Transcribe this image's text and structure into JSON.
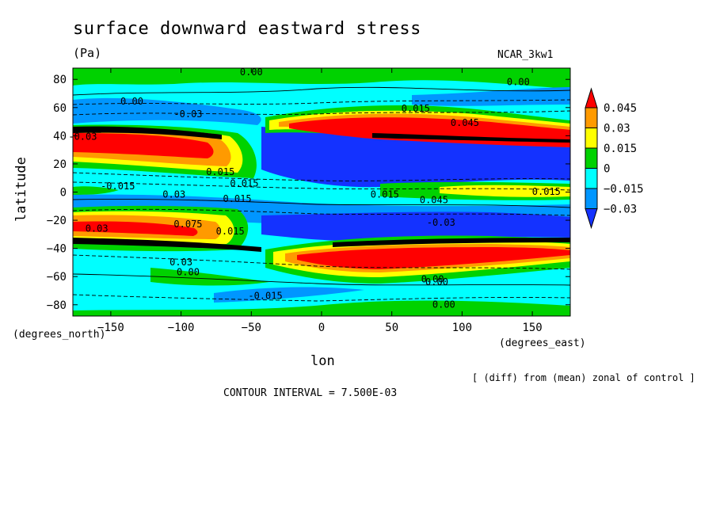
{
  "chart_data": {
    "type": "heatmap",
    "title": "surface downward eastward stress",
    "units_label": "(Pa)",
    "model_label": "NCAR_3kw1",
    "xlabel": "lon",
    "ylabel": "latitude",
    "x_units_label": "(degrees_east)",
    "y_units_label": "(degrees_north)",
    "note": "[ (diff) from (mean) zonal of control ]",
    "contour_interval_label": "CONTOUR INTERVAL = 7.500E-03",
    "xlim": [
      -177,
      177
    ],
    "ylim": [
      -88,
      88
    ],
    "x_ticks": [
      -150,
      -100,
      -50,
      0,
      50,
      100,
      150
    ],
    "x_tick_labels": [
      "−150",
      "−100",
      "−50",
      "0",
      "50",
      "100",
      "150"
    ],
    "y_ticks": [
      80,
      60,
      40,
      20,
      0,
      -20,
      -40,
      -60,
      -80
    ],
    "y_tick_labels": [
      "80",
      "60",
      "40",
      "20",
      "0",
      "−20",
      "−40",
      "−60",
      "−80"
    ],
    "colorbar": {
      "levels": [
        0.045,
        0.03,
        0.015,
        0,
        -0.015,
        -0.03
      ],
      "labels": [
        "0.045",
        "0.03",
        "0.015",
        "0",
        "−0.015",
        "−0.03"
      ],
      "colors": [
        "#ff0000",
        "#ff9a00",
        "#ffff00",
        "#00d200",
        "#00ffff",
        "#0096ff",
        "#1432ff"
      ]
    },
    "contour_labels": [
      {
        "text": "0.00",
        "lon": -50,
        "lat": 83
      },
      {
        "text": "0.00",
        "lon": 140,
        "lat": 76
      },
      {
        "text": "0.00",
        "lon": -135,
        "lat": 62
      },
      {
        "text": "-0.03",
        "lon": -95,
        "lat": 53
      },
      {
        "text": "0.015",
        "lon": 67,
        "lat": 57
      },
      {
        "text": "-0.03",
        "lon": -170,
        "lat": 37
      },
      {
        "text": "0.045",
        "lon": 102,
        "lat": 47
      },
      {
        "text": "0.015",
        "lon": -72,
        "lat": 12
      },
      {
        "text": "0.015",
        "lon": -55,
        "lat": 4
      },
      {
        "text": "-0.015",
        "lon": -145,
        "lat": 2
      },
      {
        "text": "0.03",
        "lon": -105,
        "lat": -4
      },
      {
        "text": "0.015",
        "lon": 160,
        "lat": -2
      },
      {
        "text": "0.015",
        "lon": 45,
        "lat": -4
      },
      {
        "text": "0.045",
        "lon": 80,
        "lat": -8
      },
      {
        "text": "0.015",
        "lon": -60,
        "lat": -7
      },
      {
        "text": "-0.03",
        "lon": 85,
        "lat": -24
      },
      {
        "text": "0.03",
        "lon": -160,
        "lat": -28
      },
      {
        "text": "0.075",
        "lon": -95,
        "lat": -25
      },
      {
        "text": "0.015",
        "lon": -65,
        "lat": -30
      },
      {
        "text": "0.03",
        "lon": -100,
        "lat": -52
      },
      {
        "text": "0.00",
        "lon": -95,
        "lat": -59
      },
      {
        "text": "0.00",
        "lon": 79,
        "lat": -64
      },
      {
        "text": "0.00",
        "lon": 82,
        "lat": -66
      },
      {
        "text": "-0.015",
        "lon": -40,
        "lat": -76
      },
      {
        "text": "0.00",
        "lon": 87,
        "lat": -82
      }
    ]
  }
}
